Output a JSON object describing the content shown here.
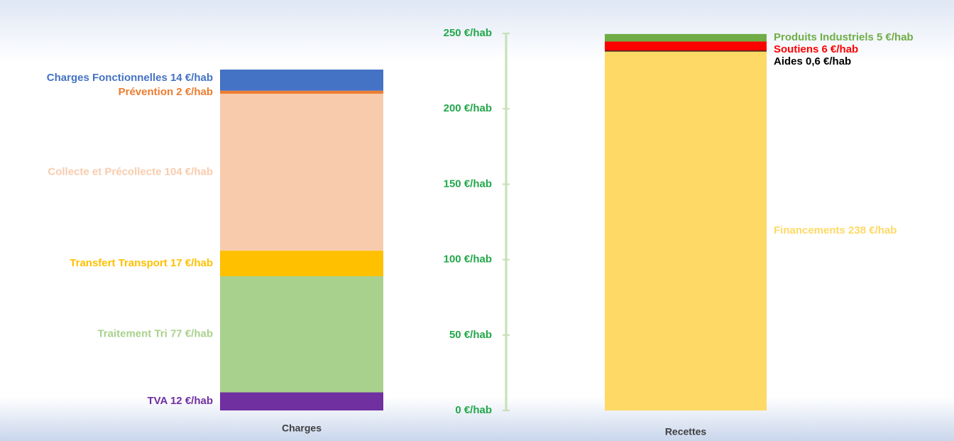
{
  "chart_data": {
    "type": "stacked-bar",
    "categories": [
      "Charges",
      "Recettes"
    ],
    "ylim": [
      0,
      250
    ],
    "yticks": [
      {
        "value": 0,
        "label": "0 €/hab"
      },
      {
        "value": 50,
        "label": "50 €/hab"
      },
      {
        "value": 100,
        "label": "100 €/hab"
      },
      {
        "value": 150,
        "label": "150 €/hab"
      },
      {
        "value": 200,
        "label": "200 €/hab"
      },
      {
        "value": 250,
        "label": "250 €/hab"
      }
    ],
    "axis_color": "#22a84a",
    "series": [
      {
        "color": "#7030a0",
        "values": [
          12,
          null
        ],
        "value_labels": [
          "TVA 12 €/hab",
          null
        ]
      },
      {
        "color": "#a9d18e",
        "values": [
          77,
          null
        ],
        "value_labels": [
          "Traitement Tri 77 €/hab",
          null
        ]
      },
      {
        "color": "#ffc000",
        "values": [
          17,
          null
        ],
        "value_labels": [
          "Transfert Transport 17 €/hab",
          null
        ]
      },
      {
        "color": "#f8cbad",
        "values": [
          104,
          null
        ],
        "value_labels": [
          "Collecte et Précollecte 104 €/hab",
          null
        ]
      },
      {
        "color": "#ed7d31",
        "values": [
          2,
          null
        ],
        "value_labels": [
          "Prévention 2 €/hab",
          null
        ]
      },
      {
        "color": "#4472c4",
        "values": [
          14,
          null
        ],
        "value_labels": [
          "Charges Fonctionnelles 14 €/hab",
          null
        ]
      },
      {
        "color": "#ffd966",
        "values": [
          null,
          238
        ],
        "value_labels": [
          null,
          "Financements 238 €/hab"
        ]
      },
      {
        "color": "#000000",
        "values": [
          null,
          0.6
        ],
        "value_labels": [
          null,
          "Aides 0,6 €/hab"
        ]
      },
      {
        "color": "#ff0000",
        "values": [
          null,
          6
        ],
        "value_labels": [
          null,
          "Soutiens 6 €/hab"
        ]
      },
      {
        "color": "#70ad47",
        "values": [
          null,
          5
        ],
        "value_labels": [
          null,
          "Produits Industriels 5 €/hab"
        ]
      }
    ]
  }
}
